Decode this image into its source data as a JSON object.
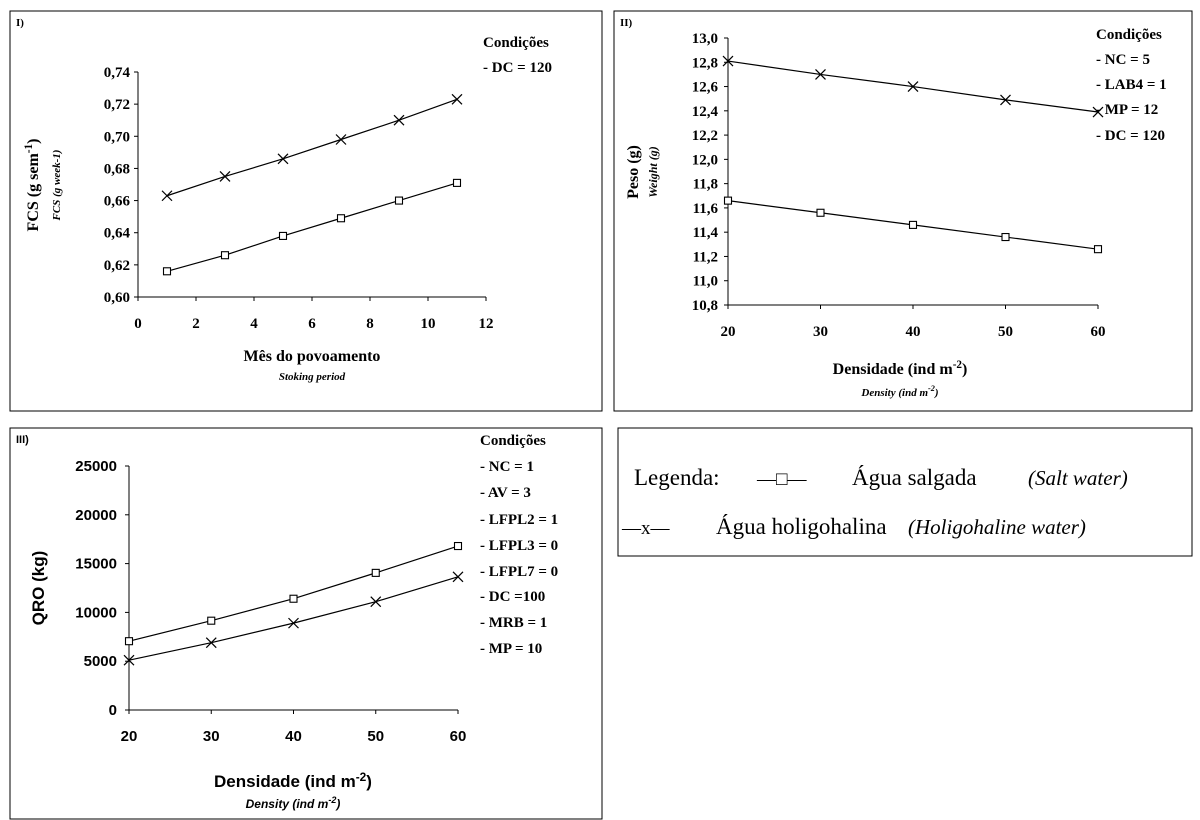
{
  "panels": {
    "p1": {
      "tag": "I)",
      "cond_title": "Condições",
      "conditions": [
        "- DC = 120"
      ]
    },
    "p2": {
      "tag": "II)",
      "cond_title": "Condições",
      "conditions": [
        "- NC = 5",
        "- LAB4 = 1",
        "- MP = 12",
        "- DC = 120"
      ]
    },
    "p3": {
      "tag": "III)",
      "cond_title": "Condições",
      "conditions": [
        "- NC = 1",
        "- AV = 3",
        "- LFPL2 = 1",
        "- LFPL3 = 0",
        "- LFPL7 = 0",
        "- DC =100",
        "- MRB = 1",
        "- MP = 10"
      ]
    }
  },
  "legend": {
    "label": "Legenda:",
    "salt_symbol": "—□—",
    "salt_text": "Água salgada",
    "salt_en": "(Salt water)",
    "holi_symbol": "—x—",
    "holi_text": "Água holigohalina",
    "holi_en": "(Holigohaline water)"
  },
  "chart_data": [
    {
      "type": "line",
      "xlabel": "Mês do povoamento",
      "xlabel_en": "Stoking period",
      "ylabel": "FCS (g sem",
      "ylabel_sup": "-1",
      "ylabel_en": "FCS (g week-1)",
      "xlim": [
        0,
        12
      ],
      "ylim": [
        0.6,
        0.74
      ],
      "xticks": [
        "0",
        "2",
        "4",
        "6",
        "8",
        "10",
        "12"
      ],
      "yticks": [
        "0,60",
        "0,62",
        "0,64",
        "0,66",
        "0,68",
        "0,70",
        "0,72",
        "0,74"
      ],
      "grid": false,
      "x": [
        1,
        3,
        5,
        7,
        9,
        11
      ],
      "series": [
        {
          "values": [
            0.616,
            0.626,
            0.638,
            0.649,
            0.66,
            0.671
          ],
          "marker": "square"
        },
        {
          "values": [
            0.663,
            0.675,
            0.686,
            0.698,
            0.71,
            0.723
          ],
          "marker": "x"
        }
      ]
    },
    {
      "type": "line",
      "xlabel": "Densidade (ind m",
      "xlabel_sup": "-2",
      "xlabel_en": "Density (ind m",
      "xlabel_en_sup": "-2",
      "ylabel": "Peso (g)",
      "ylabel_en": "Weight (g)",
      "xlim": [
        20,
        60
      ],
      "ylim": [
        10.8,
        13.0
      ],
      "xticks": [
        "20",
        "30",
        "40",
        "50",
        "60"
      ],
      "yticks": [
        "10,8",
        "11,0",
        "11,2",
        "11,4",
        "11,6",
        "11,8",
        "12,0",
        "12,2",
        "12,4",
        "12,6",
        "12,8",
        "13,0"
      ],
      "grid": false,
      "x": [
        20,
        30,
        40,
        50,
        60
      ],
      "series": [
        {
          "values": [
            11.66,
            11.56,
            11.46,
            11.36,
            11.26
          ],
          "marker": "square"
        },
        {
          "values": [
            12.81,
            12.7,
            12.6,
            12.49,
            12.39
          ],
          "marker": "x"
        }
      ]
    },
    {
      "type": "line",
      "xlabel": "Densidade (ind m",
      "xlabel_sup": "-2",
      "xlabel_en": "Density (ind m",
      "xlabel_en_sup": "-2",
      "ylabel": "QRO (kg)",
      "xlim": [
        20,
        60
      ],
      "ylim": [
        0,
        25000
      ],
      "xticks": [
        "20",
        "30",
        "40",
        "50",
        "60"
      ],
      "yticks": [
        "0",
        "5000",
        "10000",
        "15000",
        "20000",
        "25000"
      ],
      "grid": false,
      "x": [
        20,
        30,
        40,
        50,
        60
      ],
      "series": [
        {
          "values": [
            7050,
            9150,
            11400,
            14050,
            16800
          ],
          "marker": "square"
        },
        {
          "values": [
            5100,
            6900,
            8900,
            11100,
            13650
          ],
          "marker": "x"
        }
      ]
    }
  ]
}
